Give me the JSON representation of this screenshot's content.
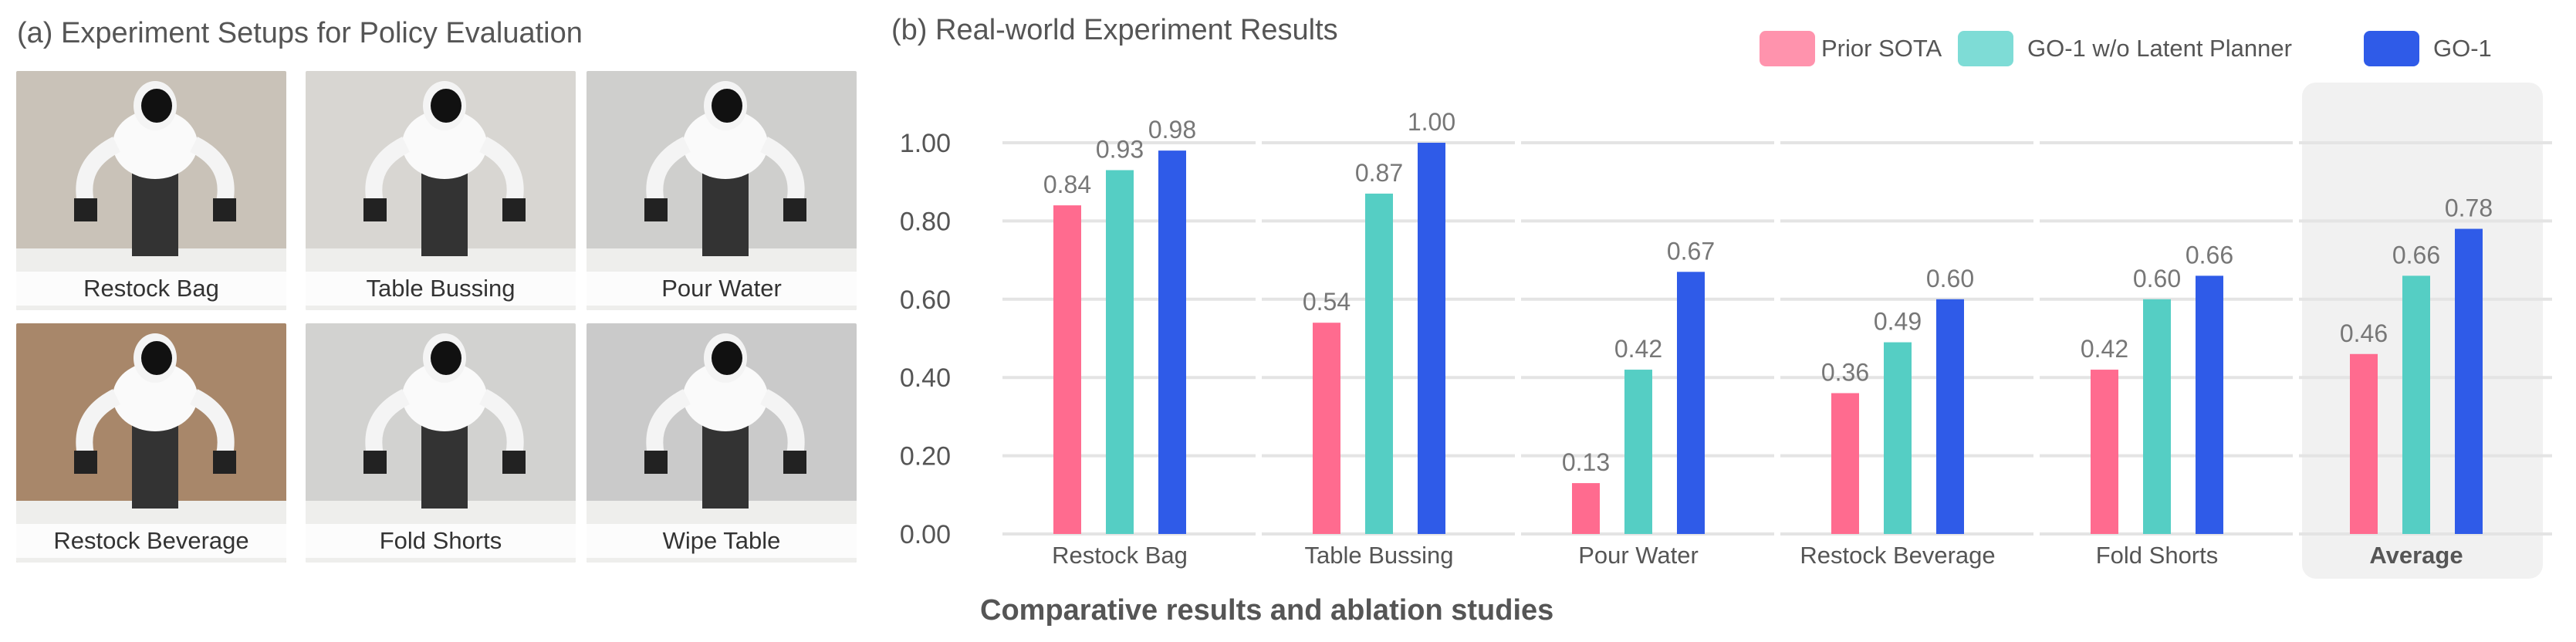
{
  "panel_a": {
    "title": "(a) Experiment Setups for Policy Evaluation",
    "tiles": [
      {
        "caption": "Restock Bag",
        "bg": "#c9c2b8"
      },
      {
        "caption": "Table Bussing",
        "bg": "#d8d6d2"
      },
      {
        "caption": "Pour Water",
        "bg": "#cfcfcd"
      },
      {
        "caption": "Restock Beverage",
        "bg": "#a8876a"
      },
      {
        "caption": "Fold Shorts",
        "bg": "#d2d2d0"
      },
      {
        "caption": "Wipe Table",
        "bg": "#cacaca"
      }
    ]
  },
  "panel_b": {
    "title": "(b) Real-world Experiment Results"
  },
  "subtitle": "Comparative results and ablation studies",
  "chart_data": {
    "type": "bar",
    "title": "(b) Real-world Experiment Results",
    "categories": [
      "Restock Bag",
      "Table Bussing",
      "Pour Water",
      "Restock Beverage",
      "Fold Shorts",
      "Average"
    ],
    "series": [
      {
        "name": "Prior SOTA",
        "color": "#ff6b8f",
        "legend_color": "#ff93ad",
        "values": [
          0.84,
          0.54,
          0.13,
          0.36,
          0.42,
          0.46
        ],
        "labels": [
          "0.84",
          "0.54",
          "0.13",
          "0.36",
          "0.42",
          "0.46"
        ]
      },
      {
        "name": "GO-1 w/o Latent Planner",
        "color": "#55cec4",
        "legend_color": "#7edcd6",
        "values": [
          0.93,
          0.87,
          0.42,
          0.49,
          0.6,
          0.66
        ],
        "labels": [
          "0.93",
          "0.87",
          "0.42",
          "0.49",
          "0.60",
          "0.66"
        ]
      },
      {
        "name": "GO-1",
        "color": "#2f5be8",
        "legend_color": "#2f5be8",
        "values": [
          0.98,
          1.0,
          0.67,
          0.6,
          0.66,
          0.78
        ],
        "labels": [
          "0.98",
          "1.00",
          "0.67",
          "0.60",
          "0.66",
          "0.78"
        ]
      }
    ],
    "yticks": [
      "0.00",
      "0.20",
      "0.40",
      "0.60",
      "0.80",
      "1.00"
    ],
    "ylim": [
      0,
      1.0
    ],
    "grid": true,
    "legend": "top-right",
    "highlighted_category": "Average"
  }
}
